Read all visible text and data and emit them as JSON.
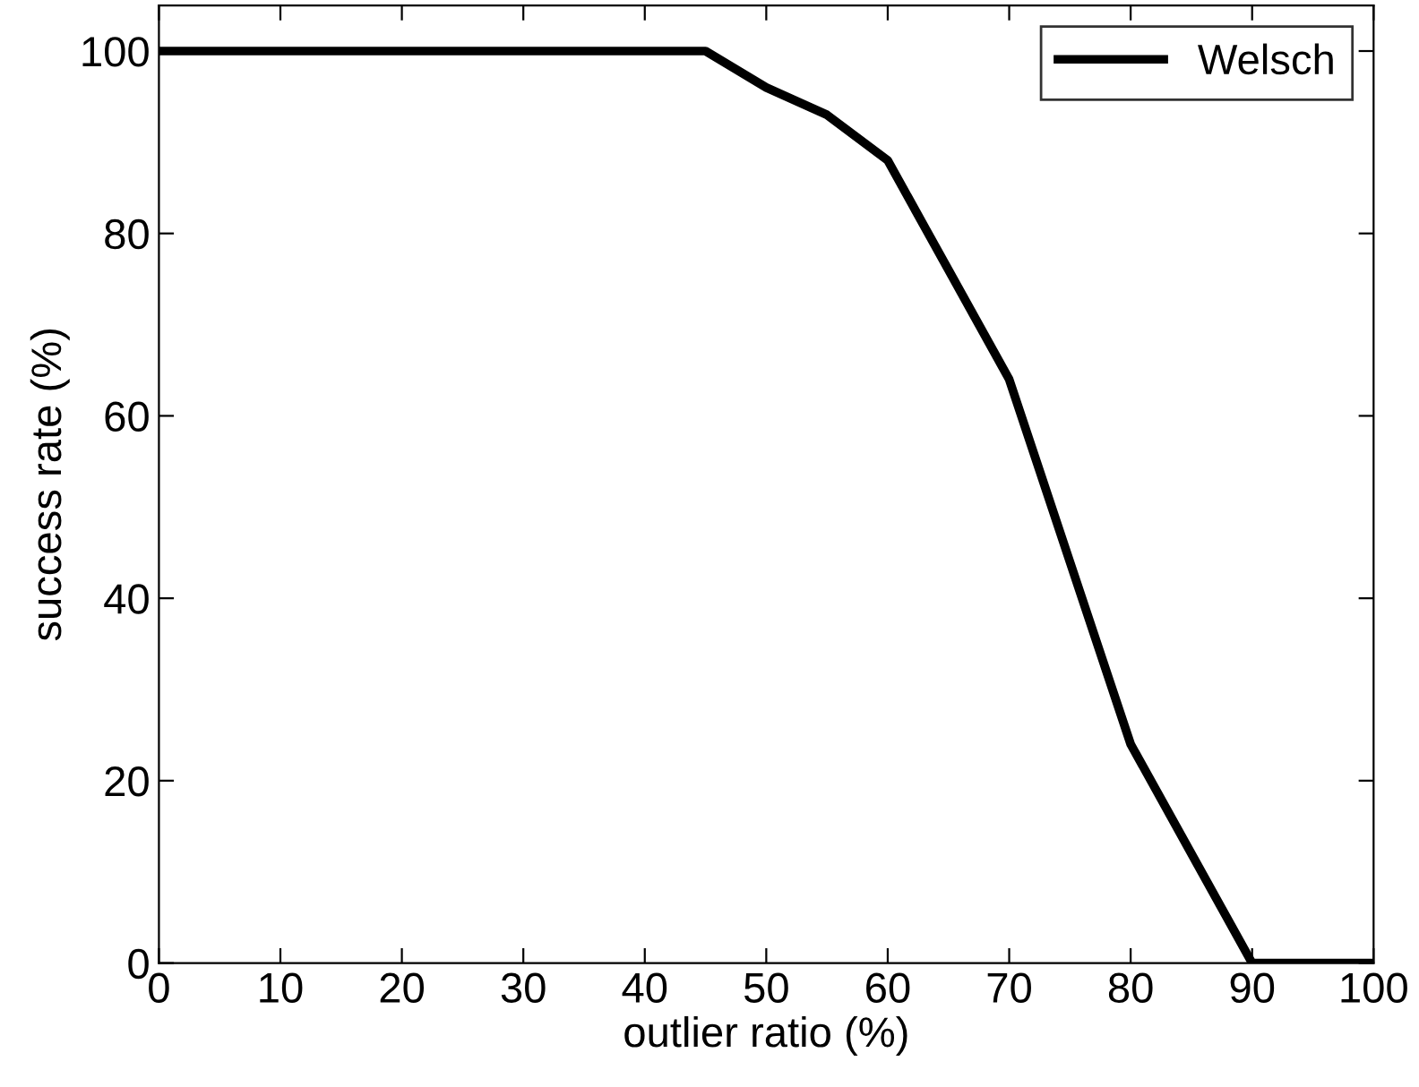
{
  "chart_data": {
    "type": "line",
    "xlabel": "outlier ratio (%)",
    "ylabel": "success rate (%)",
    "x": [
      0,
      5,
      10,
      15,
      20,
      25,
      30,
      35,
      40,
      45,
      50,
      55,
      60,
      65,
      70,
      75,
      80,
      85,
      90,
      95,
      100
    ],
    "series": [
      {
        "name": "Welsch",
        "color": "#000000",
        "values": [
          100,
          100,
          100,
          100,
          100,
          100,
          100,
          100,
          100,
          100,
          96,
          93,
          88,
          76,
          64,
          44,
          24,
          12,
          0,
          0,
          0
        ]
      }
    ],
    "xlim": [
      0,
      100
    ],
    "xticks": [
      0,
      10,
      20,
      30,
      40,
      50,
      60,
      70,
      80,
      90,
      100
    ],
    "ylim": [
      0,
      105
    ],
    "yticks": [
      0,
      20,
      40,
      60,
      80,
      100
    ],
    "grid": false,
    "legend": "top right",
    "marker": "none",
    "line_style": "solid"
  }
}
